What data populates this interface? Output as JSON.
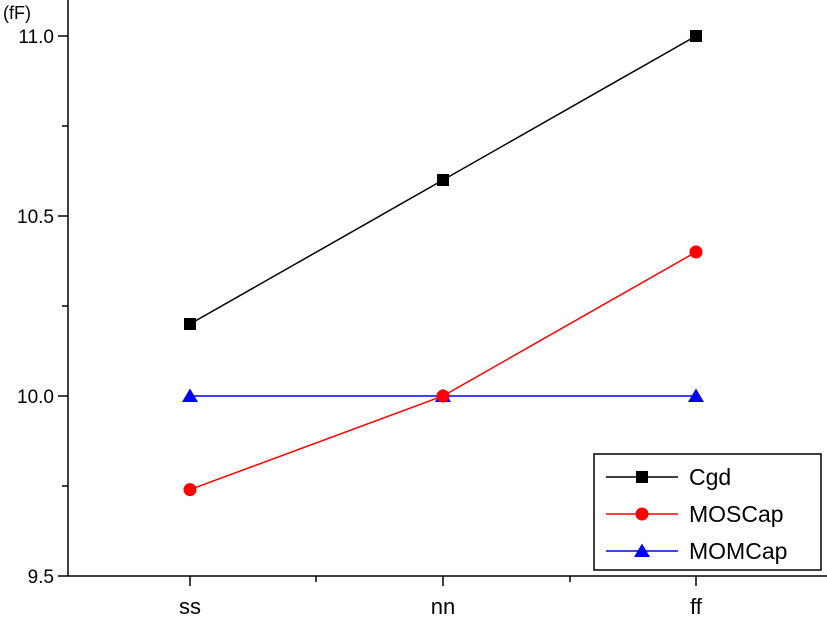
{
  "chart_data": {
    "type": "line",
    "title": "",
    "xlabel": "",
    "ylabel": "(fF)",
    "categories": [
      "ss",
      "nn",
      "ff"
    ],
    "ylim": [
      9.5,
      11.1
    ],
    "yticks": [
      9.5,
      10.0,
      10.5,
      11.0
    ],
    "ytick_labels": [
      "9.5",
      "10.0",
      "10.5",
      "11.0"
    ],
    "minor_yticks": [
      9.75,
      10.25,
      10.75
    ],
    "grid": false,
    "legend_position": "bottom-right",
    "series": [
      {
        "name": "Cgd",
        "values": [
          10.2,
          10.6,
          11.0
        ],
        "color": "#000000",
        "marker": "square"
      },
      {
        "name": "MOSCap",
        "values": [
          9.74,
          10.0,
          10.4
        ],
        "color": "#ff0000",
        "marker": "circle"
      },
      {
        "name": "MOMCap",
        "values": [
          10.0,
          10.0,
          10.0
        ],
        "color": "#0000ff",
        "marker": "triangle"
      }
    ]
  }
}
